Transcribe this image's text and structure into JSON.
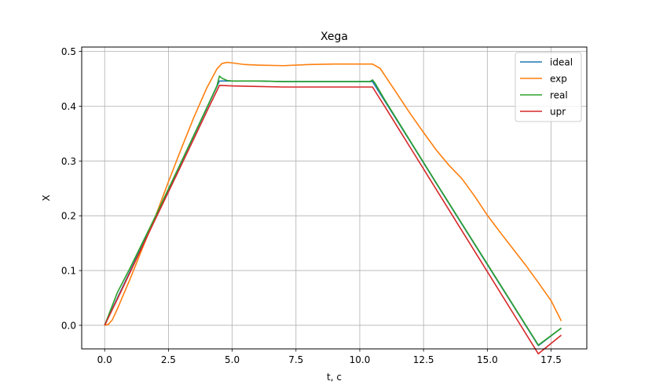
{
  "chart_data": {
    "type": "line",
    "title": "Xega",
    "xlabel": "t, c",
    "ylabel": "X",
    "xlim": [
      -0.9,
      18.9
    ],
    "ylim": [
      -0.043,
      0.508
    ],
    "xticks": [
      0.0,
      2.5,
      5.0,
      7.5,
      10.0,
      12.5,
      15.0,
      17.5
    ],
    "yticks": [
      0.0,
      0.1,
      0.2,
      0.3,
      0.4,
      0.5
    ],
    "xtick_labels": [
      "0.0",
      "2.5",
      "5.0",
      "7.5",
      "10.0",
      "12.5",
      "15.0",
      "17.5"
    ],
    "ytick_labels": [
      "0.0",
      "0.1",
      "0.2",
      "0.3",
      "0.4",
      "0.5"
    ],
    "grid": true,
    "legend_position": "top-right",
    "series": [
      {
        "name": "ideal",
        "color": "#1f77b4",
        "x": [
          0,
          0.5,
          1,
          2,
          3,
          4,
          4.5,
          5,
          6,
          7,
          8,
          9,
          10,
          10.5,
          11,
          12,
          13,
          14,
          15,
          16,
          17,
          17.9
        ],
        "y": [
          0,
          0.05,
          0.099,
          0.198,
          0.297,
          0.396,
          0.446,
          0.446,
          0.446,
          0.445,
          0.445,
          0.445,
          0.445,
          0.445,
          0.408,
          0.334,
          0.259,
          0.185,
          0.111,
          0.037,
          -0.037,
          -0.005
        ]
      },
      {
        "name": "exp",
        "color": "#ff7f0e",
        "x": [
          0,
          0.15,
          0.3,
          0.5,
          1,
          1.5,
          2,
          2.5,
          3,
          3.5,
          4,
          4.4,
          4.6,
          4.8,
          5,
          5.5,
          6,
          7,
          8,
          9,
          10,
          10.5,
          10.8,
          11,
          11.5,
          12,
          12.5,
          13,
          13.5,
          14,
          14.5,
          15,
          15.5,
          16,
          16.5,
          17,
          17.5,
          17.9
        ],
        "y": [
          0,
          0.002,
          0.01,
          0.03,
          0.085,
          0.143,
          0.2,
          0.262,
          0.322,
          0.38,
          0.433,
          0.468,
          0.478,
          0.48,
          0.479,
          0.476,
          0.475,
          0.474,
          0.476,
          0.477,
          0.477,
          0.477,
          0.469,
          0.455,
          0.42,
          0.385,
          0.352,
          0.32,
          0.292,
          0.268,
          0.236,
          0.201,
          0.17,
          0.14,
          0.11,
          0.078,
          0.045,
          0.008
        ]
      },
      {
        "name": "real",
        "color": "#2ca02c",
        "x": [
          0,
          0.5,
          1,
          2,
          3,
          4,
          4.4,
          4.5,
          4.6,
          4.8,
          5,
          6,
          7,
          8,
          9,
          10,
          10.4,
          10.5,
          10.6,
          11,
          12,
          13,
          14,
          15,
          16,
          17,
          17.9
        ],
        "y": [
          0,
          0.06,
          0.105,
          0.2,
          0.298,
          0.397,
          0.437,
          0.455,
          0.451,
          0.447,
          0.446,
          0.446,
          0.445,
          0.445,
          0.445,
          0.445,
          0.445,
          0.448,
          0.442,
          0.41,
          0.335,
          0.26,
          0.186,
          0.112,
          0.038,
          -0.036,
          -0.005
        ]
      },
      {
        "name": "upr",
        "color": "#d62728",
        "x": [
          0,
          0.5,
          1,
          2,
          3,
          4,
          4.5,
          5,
          6,
          7,
          8,
          9,
          10,
          10.5,
          11,
          12,
          13,
          14,
          15,
          16,
          17,
          17.9
        ],
        "y": [
          0,
          0.048,
          0.097,
          0.195,
          0.292,
          0.39,
          0.438,
          0.437,
          0.436,
          0.435,
          0.435,
          0.435,
          0.435,
          0.435,
          0.398,
          0.323,
          0.248,
          0.173,
          0.098,
          0.023,
          -0.052,
          -0.018
        ]
      }
    ]
  }
}
